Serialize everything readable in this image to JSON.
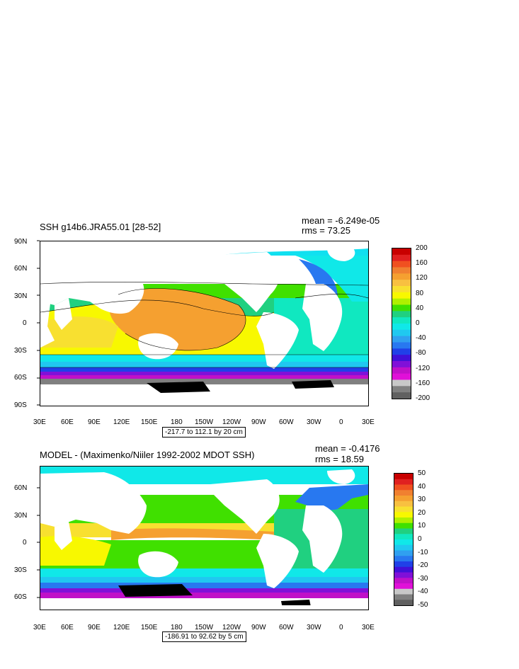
{
  "panels": [
    {
      "title": "SSH g14b6.JRA55.01 [28-52]",
      "mean": "mean = -6.249e-05",
      "rms": "rms = 73.25",
      "range": "-217.7 to 112.1 by 20 cm",
      "lat_labels": [
        "90N",
        "60N",
        "30N",
        "0",
        "30S",
        "60S",
        "90S"
      ],
      "lon_labels": [
        "30E",
        "60E",
        "90E",
        "120E",
        "150E",
        "180",
        "150W",
        "120W",
        "90W",
        "60W",
        "30W",
        "0",
        "30E"
      ],
      "colorbar": {
        "labels": [
          "200",
          "160",
          "120",
          "80",
          "40",
          "0",
          "-40",
          "-80",
          "-120",
          "-160",
          "-200"
        ],
        "colors": [
          "#c80000",
          "#e02020",
          "#f05020",
          "#f08030",
          "#f5a030",
          "#f8c040",
          "#f8e030",
          "#f8f800",
          "#b0f000",
          "#40e000",
          "#20d080",
          "#10e8c0",
          "#10e8e8",
          "#20c8f0",
          "#30a0f0",
          "#2878f0",
          "#2040e8",
          "#4010d8",
          "#8010d8",
          "#c010c8",
          "#e010d8",
          "#c8c8c8",
          "#808080",
          "#606060"
        ]
      }
    },
    {
      "title": "MODEL - (Maximenko/Niiler 1992-2002 MDOT SSH)",
      "mean": "mean = -0.4176",
      "rms": "rms = 18.59",
      "range": "-186.91 to 92.62 by 5 cm",
      "lat_labels": [
        "60N",
        "30N",
        "0",
        "30S",
        "60S"
      ],
      "lon_labels": [
        "30E",
        "60E",
        "90E",
        "120E",
        "150E",
        "180",
        "150W",
        "120W",
        "90W",
        "60W",
        "30W",
        "0",
        "30E"
      ],
      "colorbar": {
        "labels": [
          "50",
          "40",
          "30",
          "20",
          "10",
          "0",
          "-10",
          "-20",
          "-30",
          "-40",
          "-50"
        ],
        "colors": [
          "#c80000",
          "#e02020",
          "#f05020",
          "#f08030",
          "#f5a030",
          "#f8c040",
          "#f8e030",
          "#f8f800",
          "#b0f000",
          "#40e000",
          "#20d080",
          "#10e8c0",
          "#10e8e8",
          "#20c8f0",
          "#30a0f0",
          "#2878f0",
          "#2040e8",
          "#4010d8",
          "#8010d8",
          "#c010c8",
          "#e010d8",
          "#c8c8c8",
          "#808080",
          "#606060"
        ]
      }
    }
  ]
}
